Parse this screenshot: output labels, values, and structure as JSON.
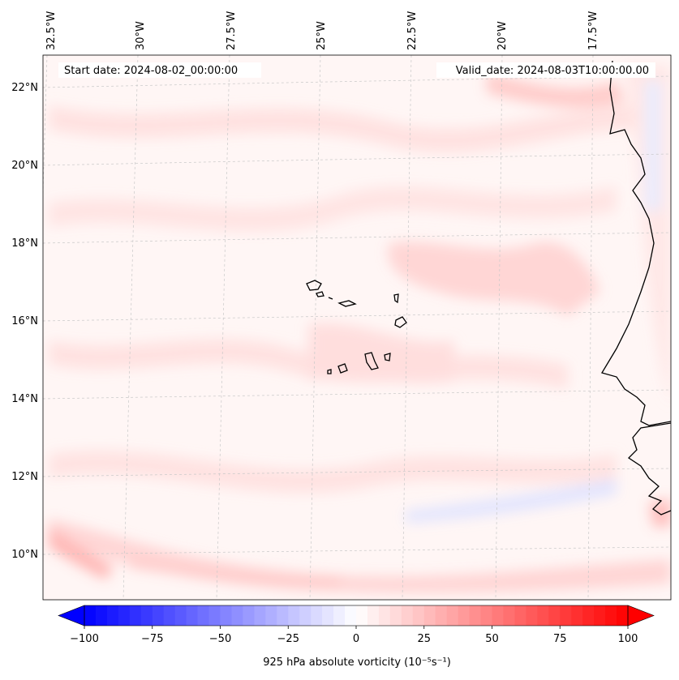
{
  "map": {
    "region": "Cape Verde / West African coast",
    "start_label": "Start date: 2024-08-02_00:00:00",
    "valid_label": "Valid_date: 2024-08-03T10:00:00.00",
    "lon_labels": [
      "32.5°W",
      "30°W",
      "27.5°W",
      "25°W",
      "22.5°W",
      "20°W",
      "17.5°W"
    ],
    "lat_labels": [
      "22°N",
      "20°N",
      "18°N",
      "16°N",
      "14°N",
      "12°N",
      "10°N"
    ],
    "colors": {
      "background": "#fff6f5",
      "light_red": "#ffe1e0",
      "mid_red": "#ffc9c7",
      "strong_red": "#ffabaa",
      "light_blue": "#e6e9ff",
      "coast": "#000000",
      "grid": "#c8c8c8"
    }
  },
  "colorbar": {
    "label": "925 hPa absolute vorticity (10⁻⁵s⁻¹)",
    "ticks": [
      "−100",
      "−75",
      "−50",
      "−25",
      "0",
      "25",
      "50",
      "75",
      "100"
    ],
    "min": -100,
    "max": 100,
    "levels": 48,
    "cmap": "bwr"
  }
}
